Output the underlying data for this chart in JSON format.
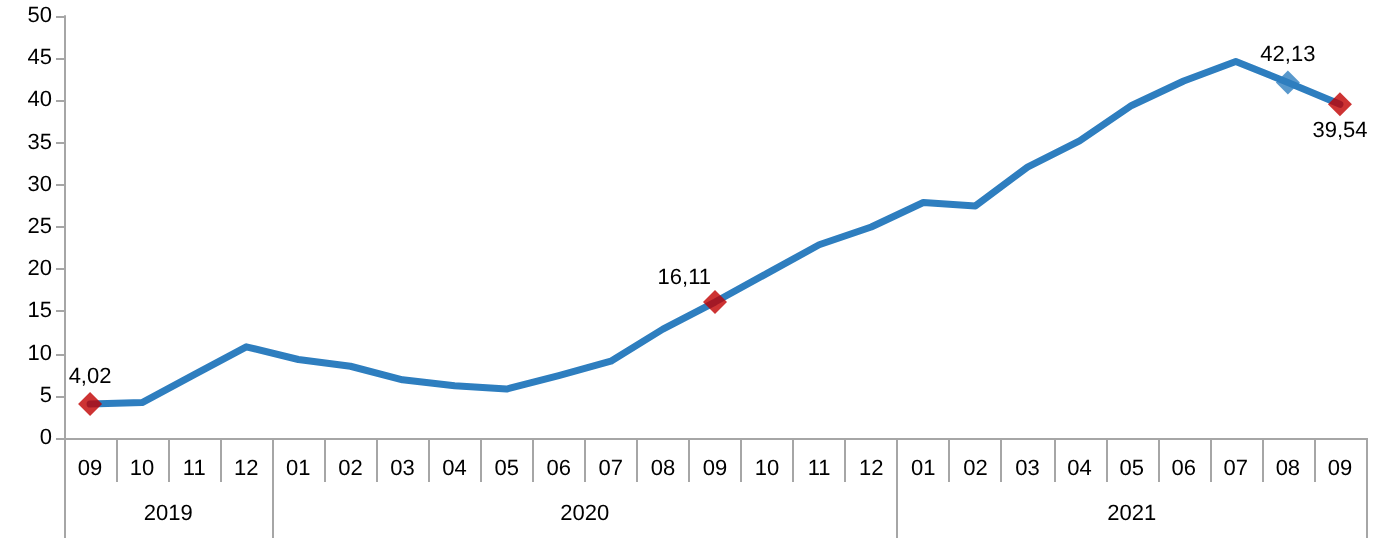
{
  "chart_data": {
    "type": "line",
    "categories": [
      "09",
      "10",
      "11",
      "12",
      "01",
      "02",
      "03",
      "04",
      "05",
      "06",
      "07",
      "08",
      "09",
      "10",
      "11",
      "12",
      "01",
      "02",
      "03",
      "04",
      "05",
      "06",
      "07",
      "08",
      "09"
    ],
    "annotations": [
      "2019",
      "2020",
      "2021"
    ],
    "series": [
      {
        "color": "#2e7ebf",
        "marker": "none",
        "values": [
          4.02,
          4.2,
          7.5,
          10.8,
          9.3,
          8.5,
          6.9,
          6.2,
          5.8,
          7.4,
          9.1,
          12.9,
          16.11,
          19.5,
          22.9,
          25.0,
          27.9,
          27.5,
          32.1,
          35.2,
          39.4,
          42.3,
          44.6,
          42.13,
          39.54
        ],
        "value_labels": [
          "4,02",
          null,
          null,
          null,
          null,
          null,
          null,
          null,
          null,
          null,
          null,
          null,
          "16,11",
          null,
          null,
          null,
          null,
          null,
          null,
          null,
          null,
          null,
          null,
          "42,13",
          "39,54"
        ]
      },
      {
        "type": "scatter",
        "marker": "diamond",
        "colors": [
          "#c00000",
          null,
          null,
          null,
          null,
          null,
          null,
          null,
          null,
          null,
          null,
          null,
          "#c00000",
          null,
          null,
          null,
          null,
          null,
          null,
          null,
          null,
          null,
          null,
          "#2e7ebf",
          "#c00000"
        ],
        "values": [
          4.02,
          null,
          null,
          null,
          null,
          null,
          null,
          null,
          null,
          null,
          null,
          null,
          16.11,
          null,
          null,
          null,
          null,
          null,
          null,
          null,
          null,
          null,
          null,
          42.13,
          39.54
        ]
      }
    ],
    "ylim": [
      0,
      50
    ],
    "yticks": [
      0,
      5,
      10,
      15,
      20,
      25,
      30,
      35,
      40,
      45,
      50
    ],
    "grid": false
  }
}
